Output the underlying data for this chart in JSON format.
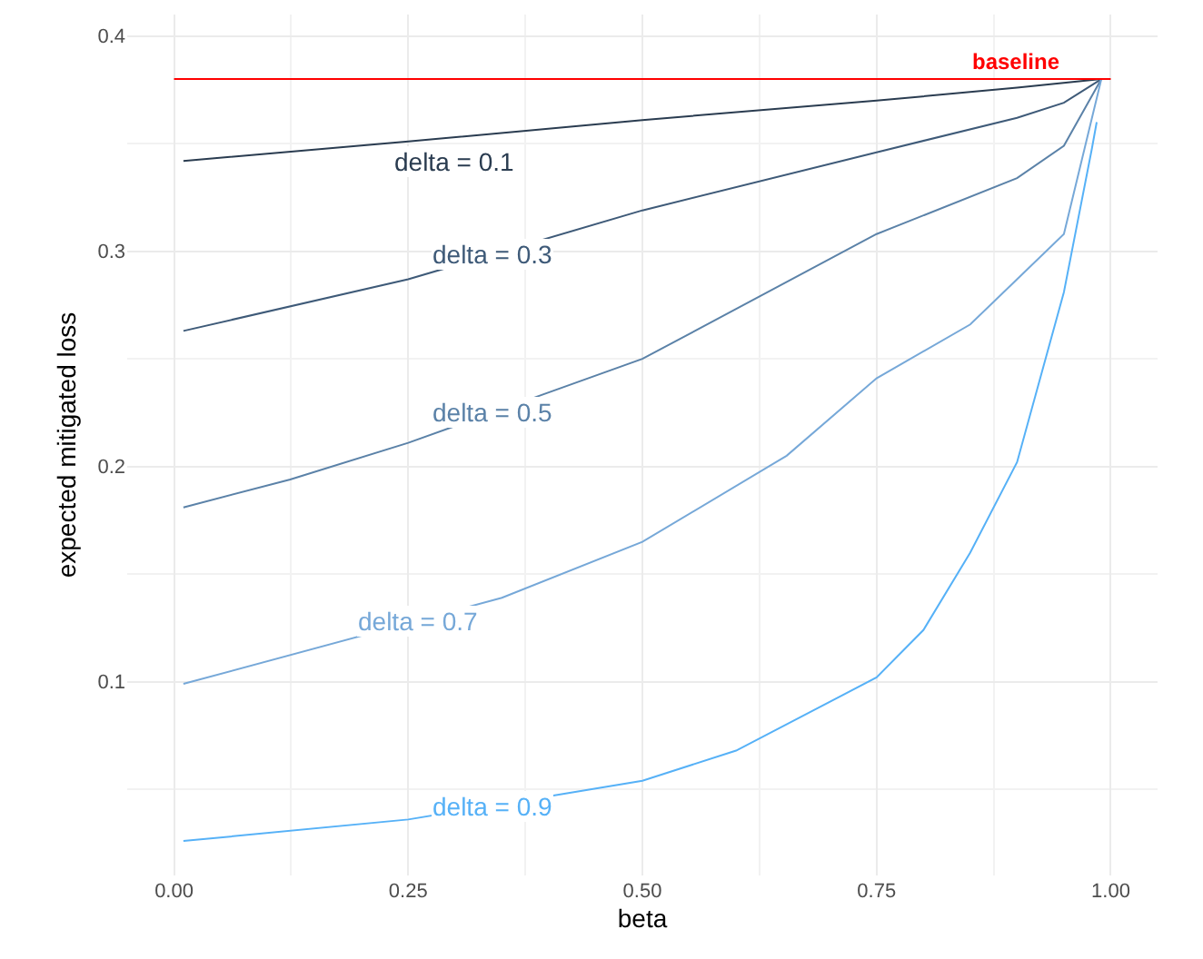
{
  "chart_data": {
    "type": "line",
    "xlabel": "beta",
    "ylabel": "expected mitigated loss",
    "xlim": [
      -0.05,
      1.05
    ],
    "ylim": [
      0.01,
      0.41
    ],
    "xticks": [
      {
        "value": 0,
        "label": "0.00"
      },
      {
        "value": 0.25,
        "label": "0.25"
      },
      {
        "value": 0.5,
        "label": "0.50"
      },
      {
        "value": 0.75,
        "label": "0.75"
      },
      {
        "value": 1,
        "label": "1.00"
      }
    ],
    "yticks": [
      0.1,
      0.2,
      0.3,
      0.4
    ],
    "grid": true,
    "legend": false,
    "marker": "none",
    "line_style": "solid",
    "series": [
      {
        "name": "delta = 0.1",
        "color": "#2a3c50",
        "x": [
          0.01,
          0.25,
          0.5,
          0.75,
          0.9,
          0.99
        ],
        "values": [
          0.342,
          0.351,
          0.361,
          0.37,
          0.376,
          0.38
        ]
      },
      {
        "name": "delta = 0.3",
        "color": "#3e5a78",
        "x": [
          0.01,
          0.25,
          0.5,
          0.75,
          0.9,
          0.95,
          0.99
        ],
        "values": [
          0.263,
          0.287,
          0.319,
          0.346,
          0.362,
          0.369,
          0.38
        ]
      },
      {
        "name": "delta = 0.5",
        "color": "#5b82a8",
        "x": [
          0.01,
          0.124,
          0.25,
          0.5,
          0.75,
          0.9,
          0.95,
          0.99
        ],
        "values": [
          0.181,
          0.194,
          0.211,
          0.25,
          0.308,
          0.334,
          0.349,
          0.38
        ]
      },
      {
        "name": "delta = 0.7",
        "color": "#76a8d8",
        "x": [
          0.01,
          0.35,
          0.5,
          0.654,
          0.75,
          0.85,
          0.9,
          0.95,
          0.99
        ],
        "values": [
          0.099,
          0.139,
          0.165,
          0.205,
          0.241,
          0.266,
          0.287,
          0.308,
          0.38
        ]
      },
      {
        "name": "delta = 0.9",
        "color": "#56b1f7",
        "x": [
          0.01,
          0.25,
          0.5,
          0.6,
          0.75,
          0.8,
          0.85,
          0.9,
          0.95,
          0.98,
          0.985
        ],
        "values": [
          0.026,
          0.036,
          0.054,
          0.068,
          0.102,
          0.124,
          0.16,
          0.202,
          0.281,
          0.348,
          0.36
        ]
      }
    ],
    "ref_lines": [
      {
        "axis": "y",
        "value": 0.38,
        "label": "baseline",
        "color": "#ff0000"
      }
    ]
  }
}
